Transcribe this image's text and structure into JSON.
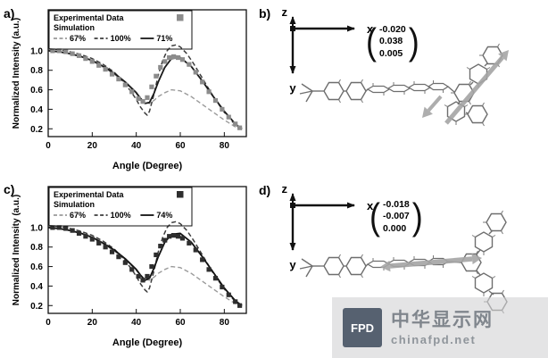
{
  "panels": {
    "a": {
      "label": "a)"
    },
    "b": {
      "label": "b)",
      "axis_x": "x",
      "axis_y": "y",
      "axis_z": "z",
      "vector": [
        "-0.020",
        "0.038",
        "0.005"
      ]
    },
    "c": {
      "label": "c)"
    },
    "d": {
      "label": "d)",
      "axis_x": "x",
      "axis_y": "y",
      "axis_z": "z",
      "vector": [
        "-0.018",
        "-0.007",
        "0.000"
      ]
    }
  },
  "symbols": {
    "open_paren": "(",
    "close_paren": ")"
  },
  "watermark": {
    "logo_text": "FPD",
    "name": "中华显示网",
    "url": "chinafpd.net"
  },
  "chart_data": [
    {
      "panel": "a",
      "type": "line",
      "title": "",
      "xlabel": "Angle (Degree)",
      "ylabel": "Normalized Intensity (a.u.)",
      "xlim": [
        0,
        90
      ],
      "ylim": [
        0.12,
        1.42
      ],
      "xticks": [
        0,
        20,
        40,
        60,
        80
      ],
      "yticks": [
        0.2,
        0.4,
        0.6,
        0.8,
        1.0
      ],
      "legend": {
        "experimental": "Experimental Data",
        "simulation": "Simulation",
        "entries": [
          "67%",
          "100%",
          "71%"
        ],
        "marker_color": "#8c8c8c",
        "position": "top-left"
      },
      "series": [
        {
          "name": "67%",
          "style": "dashed",
          "color": "#9a9a9a",
          "width": 1.4,
          "x": [
            0,
            5,
            10,
            15,
            20,
            25,
            30,
            35,
            40,
            42,
            44,
            46,
            48,
            50,
            53,
            56,
            60,
            65,
            70,
            75,
            80,
            85,
            88
          ],
          "y": [
            1.0,
            0.99,
            0.97,
            0.94,
            0.89,
            0.83,
            0.76,
            0.67,
            0.56,
            0.51,
            0.47,
            0.46,
            0.49,
            0.53,
            0.57,
            0.6,
            0.59,
            0.53,
            0.45,
            0.37,
            0.29,
            0.22,
            0.19
          ]
        },
        {
          "name": "100%",
          "style": "dashed",
          "color": "#3d3d3d",
          "width": 1.5,
          "x": [
            0,
            5,
            10,
            15,
            20,
            25,
            30,
            35,
            38,
            40,
            42,
            44,
            45,
            46,
            48,
            50,
            52,
            54,
            56,
            58,
            60,
            63,
            66,
            70,
            75,
            80,
            85,
            88
          ],
          "y": [
            1.02,
            1.01,
            0.99,
            0.96,
            0.92,
            0.86,
            0.78,
            0.66,
            0.57,
            0.5,
            0.42,
            0.36,
            0.34,
            0.38,
            0.55,
            0.75,
            0.9,
            1.0,
            1.05,
            1.06,
            1.04,
            0.97,
            0.87,
            0.72,
            0.53,
            0.37,
            0.24,
            0.19
          ]
        },
        {
          "name": "71%",
          "style": "solid",
          "color": "#1a1a1a",
          "width": 1.8,
          "x": [
            0,
            5,
            10,
            15,
            20,
            25,
            30,
            35,
            40,
            42,
            44,
            46,
            48,
            50,
            53,
            56,
            60,
            65,
            70,
            75,
            80,
            85,
            88
          ],
          "y": [
            1.0,
            0.99,
            0.97,
            0.94,
            0.9,
            0.84,
            0.77,
            0.68,
            0.57,
            0.51,
            0.46,
            0.47,
            0.56,
            0.68,
            0.83,
            0.92,
            0.93,
            0.84,
            0.69,
            0.53,
            0.38,
            0.25,
            0.2
          ]
        },
        {
          "name": "Experimental Data",
          "style": "scatter",
          "color": "#8c8c8c",
          "x": [
            2,
            5,
            8,
            11,
            14,
            17,
            20,
            23,
            26,
            29,
            32,
            35,
            38,
            41,
            43,
            45,
            47,
            49,
            51,
            53,
            55,
            57,
            59,
            61,
            64,
            67,
            70,
            73,
            76,
            79,
            82,
            85,
            87
          ],
          "y": [
            1.0,
            1.0,
            0.99,
            0.97,
            0.95,
            0.92,
            0.89,
            0.85,
            0.81,
            0.76,
            0.71,
            0.65,
            0.58,
            0.51,
            0.48,
            0.52,
            0.63,
            0.74,
            0.83,
            0.89,
            0.93,
            0.94,
            0.93,
            0.91,
            0.86,
            0.78,
            0.68,
            0.58,
            0.49,
            0.4,
            0.32,
            0.25,
            0.21
          ]
        }
      ]
    },
    {
      "panel": "c",
      "type": "line",
      "title": "",
      "xlabel": "Angle (Degree)",
      "ylabel": "Normalized Intensity (a.u.)",
      "xlim": [
        0,
        90
      ],
      "ylim": [
        0.12,
        1.42
      ],
      "xticks": [
        0,
        20,
        40,
        60,
        80
      ],
      "yticks": [
        0.2,
        0.4,
        0.6,
        0.8,
        1.0
      ],
      "legend": {
        "experimental": "Experimental Data",
        "simulation": "Simulation",
        "entries": [
          "67%",
          "100%",
          "74%"
        ],
        "marker_color": "#2e2e2e",
        "position": "top-left"
      },
      "series": [
        {
          "name": "67%",
          "style": "dashed",
          "color": "#9a9a9a",
          "width": 1.4,
          "x": [
            0,
            5,
            10,
            15,
            20,
            25,
            30,
            35,
            40,
            42,
            44,
            46,
            48,
            50,
            53,
            56,
            60,
            65,
            70,
            75,
            80,
            85,
            88
          ],
          "y": [
            1.0,
            0.99,
            0.97,
            0.94,
            0.89,
            0.83,
            0.76,
            0.67,
            0.56,
            0.51,
            0.47,
            0.46,
            0.49,
            0.53,
            0.57,
            0.6,
            0.59,
            0.53,
            0.45,
            0.37,
            0.29,
            0.22,
            0.19
          ]
        },
        {
          "name": "100%",
          "style": "dashed",
          "color": "#3d3d3d",
          "width": 1.5,
          "x": [
            0,
            5,
            10,
            15,
            20,
            25,
            30,
            35,
            38,
            40,
            42,
            44,
            45,
            46,
            48,
            50,
            52,
            54,
            56,
            58,
            60,
            63,
            66,
            70,
            75,
            80,
            85,
            88
          ],
          "y": [
            1.02,
            1.01,
            0.99,
            0.96,
            0.92,
            0.86,
            0.78,
            0.66,
            0.57,
            0.5,
            0.42,
            0.36,
            0.34,
            0.38,
            0.55,
            0.75,
            0.9,
            1.0,
            1.05,
            1.06,
            1.04,
            0.97,
            0.87,
            0.72,
            0.53,
            0.37,
            0.24,
            0.19
          ]
        },
        {
          "name": "74%",
          "style": "solid",
          "color": "#111111",
          "width": 1.8,
          "x": [
            0,
            5,
            10,
            15,
            20,
            25,
            30,
            35,
            40,
            42,
            44,
            46,
            48,
            50,
            53,
            56,
            60,
            65,
            70,
            75,
            80,
            85,
            88
          ],
          "y": [
            1.0,
            0.99,
            0.97,
            0.94,
            0.9,
            0.84,
            0.77,
            0.68,
            0.57,
            0.51,
            0.46,
            0.48,
            0.58,
            0.7,
            0.85,
            0.93,
            0.94,
            0.85,
            0.7,
            0.54,
            0.38,
            0.25,
            0.2
          ]
        },
        {
          "name": "Experimental Data",
          "style": "scatter",
          "color": "#2e2e2e",
          "x": [
            2,
            5,
            8,
            11,
            14,
            17,
            20,
            23,
            26,
            29,
            32,
            35,
            38,
            41,
            43,
            45,
            47,
            49,
            51,
            53,
            55,
            57,
            59,
            61,
            64,
            67,
            70,
            73,
            76,
            79,
            82,
            85,
            87
          ],
          "y": [
            1.0,
            1.0,
            0.99,
            0.97,
            0.94,
            0.91,
            0.88,
            0.84,
            0.8,
            0.75,
            0.7,
            0.64,
            0.57,
            0.5,
            0.46,
            0.5,
            0.6,
            0.72,
            0.81,
            0.87,
            0.91,
            0.92,
            0.91,
            0.89,
            0.84,
            0.77,
            0.67,
            0.57,
            0.48,
            0.39,
            0.31,
            0.24,
            0.2
          ]
        }
      ]
    }
  ]
}
